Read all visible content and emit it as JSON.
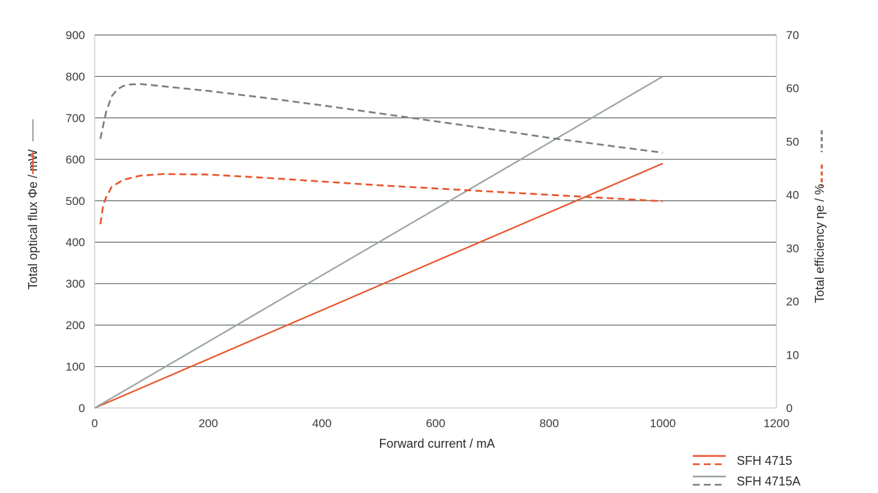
{
  "chart_data": {
    "type": "line",
    "xlabel": "Forward current / mA",
    "ylabel_left": "Total optical flux Φe / mW",
    "ylabel_right": "Total efficiency ηe / %",
    "x_ticks": [
      "0",
      "200",
      "400",
      "600",
      "800",
      "1000",
      "1200"
    ],
    "y_left_ticks": [
      "0",
      "100",
      "200",
      "300",
      "400",
      "500",
      "600",
      "700",
      "800",
      "900"
    ],
    "y_right_ticks": [
      "0",
      "10",
      "20",
      "30",
      "40",
      "50",
      "60",
      "70"
    ],
    "xlim": [
      0,
      1200
    ],
    "ylim_left": [
      0,
      900
    ],
    "ylim_right": [
      0,
      70
    ],
    "grid": "horizontal",
    "legend_position": "bottom-right",
    "colors": {
      "sfh4715": "#e8542a",
      "sfh4715a": "#9aa3a3",
      "sfh4715a_eff": "#7b7f80"
    },
    "series": [
      {
        "name": "SFH 4715",
        "kind": "flux",
        "axis": "left",
        "style": "solid",
        "color": "#e8542a",
        "x": [
          0,
          200,
          400,
          600,
          800,
          1000
        ],
        "y": [
          0,
          118,
          236,
          354,
          472,
          590
        ]
      },
      {
        "name": "SFH 4715A",
        "kind": "flux",
        "axis": "left",
        "style": "solid",
        "color": "#9aa3a3",
        "x": [
          0,
          200,
          400,
          600,
          800,
          1000
        ],
        "y": [
          0,
          160,
          320,
          480,
          640,
          800
        ]
      },
      {
        "name": "SFH 4715",
        "kind": "efficiency",
        "axis": "right",
        "style": "dashed",
        "color": "#e8542a",
        "x": [
          10,
          15,
          20,
          30,
          50,
          80,
          120,
          200,
          300,
          400,
          500,
          600,
          700,
          800,
          900,
          1000
        ],
        "y": [
          34.5,
          38,
          39.5,
          41.5,
          42.8,
          43.6,
          43.9,
          43.8,
          43.2,
          42.5,
          41.8,
          41.2,
          40.6,
          40,
          39.4,
          38.8
        ]
      },
      {
        "name": "SFH 4715A",
        "kind": "efficiency",
        "axis": "right",
        "style": "dashed",
        "color": "#7b7f80",
        "x": [
          10,
          15,
          20,
          30,
          40,
          50,
          60,
          80,
          100,
          200,
          300,
          400,
          500,
          600,
          700,
          800,
          900,
          1000
        ],
        "y": [
          50.5,
          53,
          55.5,
          58.5,
          59.8,
          60.4,
          60.7,
          60.8,
          60.6,
          59.5,
          58.2,
          56.8,
          55.3,
          53.8,
          52.3,
          50.7,
          49.3,
          47.9
        ]
      }
    ],
    "legend": [
      {
        "label": "SFH 4715",
        "color": "#e8542a"
      },
      {
        "label": "SFH 4715A",
        "color": "#9aa3a3"
      }
    ]
  }
}
